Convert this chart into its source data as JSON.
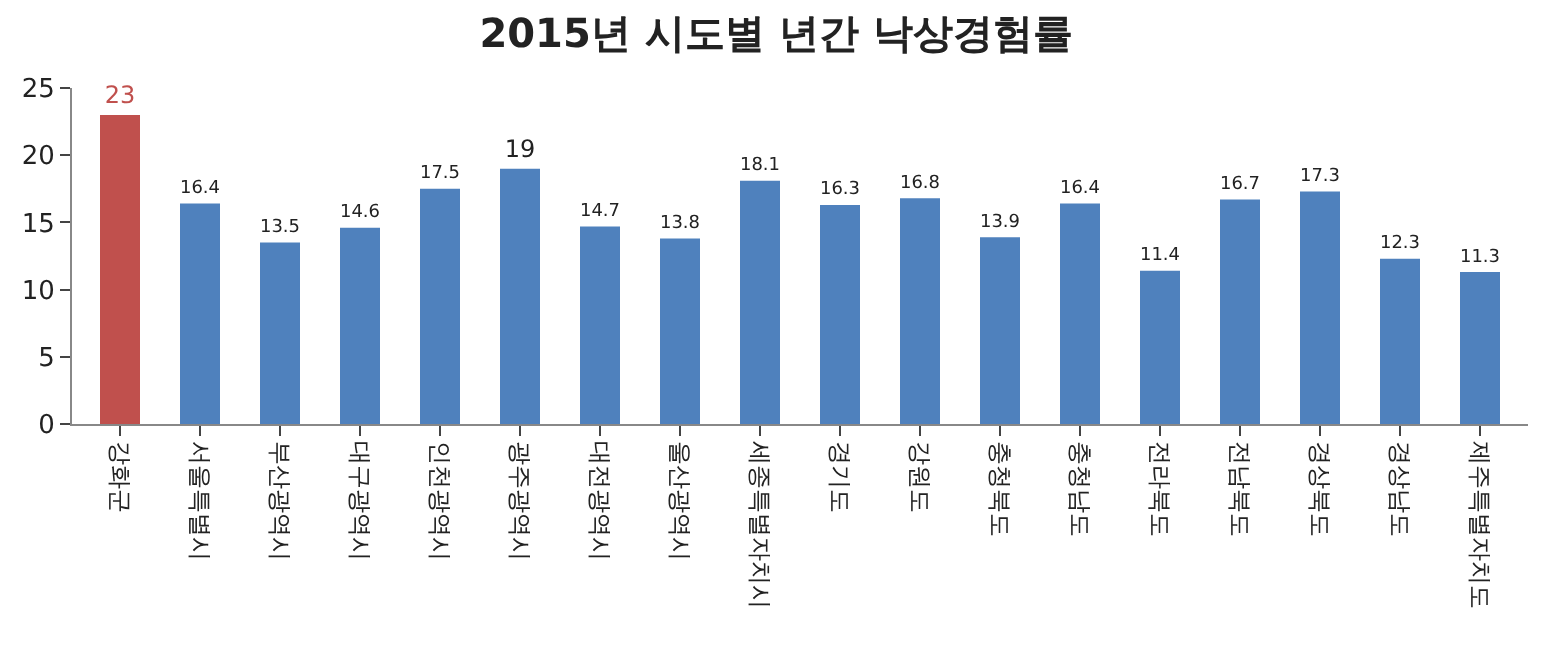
{
  "chart_data": {
    "type": "bar",
    "title": "2015년 시도별 년간 낙상경험률",
    "categories": [
      "강화군",
      "서울특별시",
      "부산광역시",
      "대구광역시",
      "인천광역시",
      "광주광역시",
      "대전광역시",
      "울산광역시",
      "세종특별자치시",
      "경기도",
      "강원도",
      "충청북도",
      "충청남도",
      "전라북도",
      "전남북도",
      "경상북도",
      "경상남도",
      "제주특별자치도"
    ],
    "values": [
      23,
      16.4,
      13.5,
      14.6,
      17.5,
      19,
      14.7,
      13.8,
      18.1,
      16.3,
      16.8,
      13.9,
      16.4,
      11.4,
      16.7,
      17.3,
      12.3,
      11.3
    ],
    "colors": [
      "#c0504d",
      "#4f81bd",
      "#4f81bd",
      "#4f81bd",
      "#4f81bd",
      "#4f81bd",
      "#4f81bd",
      "#4f81bd",
      "#4f81bd",
      "#4f81bd",
      "#4f81bd",
      "#4f81bd",
      "#4f81bd",
      "#4f81bd",
      "#4f81bd",
      "#4f81bd",
      "#4f81bd",
      "#4f81bd"
    ],
    "ylim": [
      0,
      25
    ],
    "yticks": [
      0,
      5,
      10,
      15,
      20,
      25
    ],
    "grid": false,
    "data_labels": true
  }
}
